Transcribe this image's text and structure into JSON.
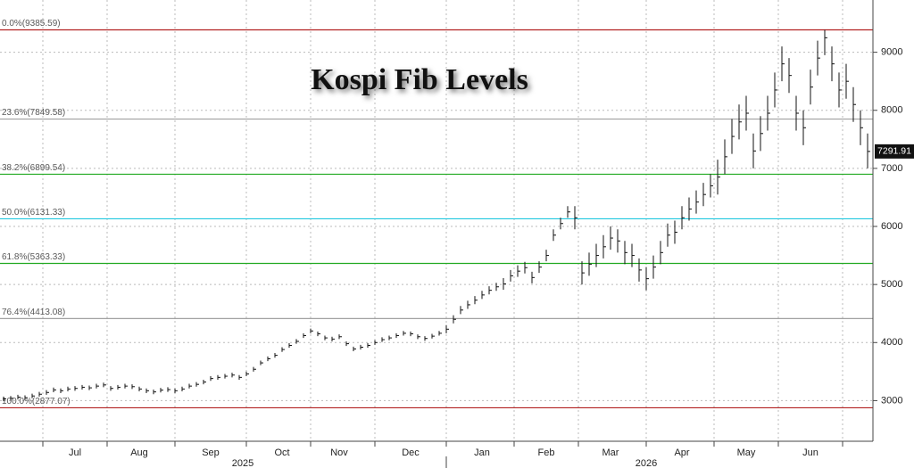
{
  "chart_data": {
    "type": "ohlc",
    "title": "Kospi Fib Levels",
    "categories": [
      null,
      null,
      null,
      null,
      null,
      null,
      null,
      null,
      null,
      null,
      "Jul",
      null,
      null,
      null,
      null,
      null,
      null,
      null,
      null,
      "Aug",
      null,
      null,
      null,
      null,
      null,
      null,
      null,
      null,
      null,
      "Sep",
      null,
      null,
      null,
      null,
      null,
      null,
      null,
      null,
      null,
      "Oct",
      null,
      null,
      null,
      null,
      null,
      null,
      null,
      "Nov",
      null,
      null,
      null,
      null,
      null,
      null,
      null,
      null,
      null,
      "Dec",
      null,
      null,
      null,
      null,
      null,
      null,
      null,
      null,
      null,
      "Jan",
      null,
      null,
      null,
      null,
      null,
      null,
      null,
      null,
      "Feb",
      null,
      null,
      null,
      null,
      null,
      null,
      null,
      null,
      "Mar",
      null,
      null,
      null,
      null,
      null,
      null,
      null,
      null,
      null,
      "Apr",
      null,
      null,
      null,
      null,
      null,
      null,
      null,
      null,
      "May",
      null,
      null,
      null,
      null,
      null,
      null,
      null,
      null,
      "Jun",
      null,
      null,
      null,
      null,
      null,
      null,
      null,
      null
    ],
    "x_groups": [
      "2025",
      "2026"
    ],
    "high": [
      3070,
      3080,
      3100,
      3090,
      3120,
      3150,
      3180,
      3225,
      3210,
      3240,
      3250,
      3270,
      3260,
      3290,
      3310,
      3250,
      3270,
      3290,
      3280,
      3240,
      3210,
      3190,
      3220,
      3230,
      3210,
      3240,
      3290,
      3320,
      3360,
      3420,
      3440,
      3460,
      3480,
      3440,
      3500,
      3580,
      3690,
      3760,
      3820,
      3920,
      3990,
      4060,
      4160,
      4240,
      4190,
      4120,
      4100,
      4140,
      4020,
      3930,
      3960,
      3990,
      4040,
      4090,
      4120,
      4160,
      4200,
      4190,
      4140,
      4110,
      4150,
      4200,
      4300,
      4470,
      4630,
      4720,
      4800,
      4890,
      4970,
      5030,
      5110,
      5250,
      5330,
      5390,
      5220,
      5400,
      5600,
      5950,
      6150,
      6350,
      6350,
      5400,
      5550,
      5700,
      5850,
      6000,
      5950,
      5750,
      5700,
      5450,
      5300,
      5500,
      5750,
      6050,
      6100,
      6350,
      6500,
      6620,
      6750,
      6900,
      7150,
      7500,
      7850,
      8100,
      8250,
      7600,
      7900,
      8250,
      8650,
      9100,
      8900,
      8250,
      8000,
      8700,
      9200,
      9385.59,
      9100,
      8650,
      8800,
      8400,
      8000,
      7600
    ],
    "low": [
      2990,
      3000,
      3020,
      3010,
      3040,
      3070,
      3100,
      3145,
      3130,
      3160,
      3170,
      3190,
      3180,
      3210,
      3230,
      3170,
      3190,
      3210,
      3200,
      3160,
      3130,
      3110,
      3140,
      3150,
      3130,
      3160,
      3210,
      3240,
      3280,
      3340,
      3360,
      3380,
      3400,
      3360,
      3420,
      3500,
      3610,
      3680,
      3740,
      3840,
      3910,
      3980,
      4080,
      4160,
      4110,
      4040,
      4020,
      4060,
      3940,
      3850,
      3880,
      3910,
      3960,
      4010,
      4040,
      4080,
      4120,
      4110,
      4060,
      4030,
      4070,
      4120,
      4160,
      4330,
      4490,
      4580,
      4660,
      4750,
      4830,
      4890,
      4910,
      5050,
      5130,
      5190,
      5020,
      5200,
      5400,
      5750,
      5950,
      6150,
      5950,
      5000,
      5150,
      5300,
      5450,
      5600,
      5550,
      5350,
      5300,
      5050,
      4900,
      5100,
      5350,
      5650,
      5700,
      5950,
      6100,
      6220,
      6350,
      6500,
      6550,
      6900,
      7250,
      7500,
      7650,
      7000,
      7300,
      7650,
      8050,
      8500,
      8300,
      7650,
      7400,
      8100,
      8600,
      8950,
      8500,
      8050,
      8200,
      7800,
      7400,
      7000
    ],
    "close": [
      3030,
      3040,
      3060,
      3050,
      3080,
      3110,
      3140,
      3185,
      3170,
      3200,
      3210,
      3230,
      3220,
      3250,
      3270,
      3210,
      3230,
      3250,
      3240,
      3200,
      3170,
      3150,
      3180,
      3190,
      3170,
      3200,
      3250,
      3280,
      3320,
      3380,
      3400,
      3420,
      3440,
      3400,
      3460,
      3540,
      3650,
      3720,
      3780,
      3880,
      3950,
      4020,
      4120,
      4200,
      4150,
      4080,
      4060,
      4100,
      3980,
      3890,
      3920,
      3950,
      4000,
      4050,
      4080,
      4120,
      4160,
      4150,
      4100,
      4070,
      4110,
      4160,
      4230,
      4400,
      4560,
      4650,
      4730,
      4820,
      4900,
      4960,
      5010,
      5150,
      5230,
      5290,
      5120,
      5300,
      5500,
      5850,
      6050,
      6250,
      6150,
      5200,
      5350,
      5500,
      5650,
      5800,
      5750,
      5550,
      5500,
      5250,
      5100,
      5300,
      5550,
      5850,
      5900,
      6150,
      6300,
      6420,
      6550,
      6700,
      6850,
      7200,
      7550,
      7800,
      7950,
      7300,
      7600,
      7950,
      8350,
      8800,
      8600,
      7950,
      7700,
      8400,
      8900,
      9250,
      8800,
      8350,
      8500,
      8100,
      7700,
      7291.91
    ],
    "color": "#111111",
    "levels": [
      {
        "value": 9385.59,
        "label": "0.0%(9385.59)",
        "color": "#b22222"
      },
      {
        "value": 7849.58,
        "label": "23.6%(7849.58)",
        "color": "#a0a0a0"
      },
      {
        "value": 6899.54,
        "label": "38.2%(6899.54)",
        "color": "#22aa22"
      },
      {
        "value": 6131.33,
        "label": "50.0%(6131.33)",
        "color": "#22c8e0"
      },
      {
        "value": 5363.33,
        "label": "61.8%(5363.33)",
        "color": "#22aa22"
      },
      {
        "value": 4413.08,
        "label": "76.4%(4413.08)",
        "color": "#a0a0a0"
      },
      {
        "value": 2877.07,
        "label": "100.0%(2877.07)",
        "color": "#b22222"
      }
    ],
    "ylim": [
      2300,
      9900
    ],
    "yticks": [
      3000,
      4000,
      5000,
      6000,
      7000,
      8000,
      9000
    ],
    "grid": true
  }
}
